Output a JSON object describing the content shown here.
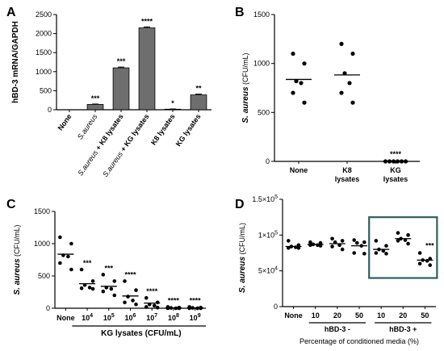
{
  "panels": {
    "A": {
      "label": "A"
    },
    "B": {
      "label": "B"
    },
    "C": {
      "label": "C"
    },
    "D": {
      "label": "D"
    }
  },
  "chart_data": [
    {
      "id": "A",
      "type": "bar",
      "ylabel": "hBD-3 mRNA/GAPDH",
      "ylim": [
        0,
        2500
      ],
      "yticks": [
        0,
        500,
        1000,
        1500,
        2000,
        2500
      ],
      "categories": [
        {
          "parts": [
            "None"
          ]
        },
        {
          "parts": [
            "S.aureus"
          ],
          "italic": [
            true
          ]
        },
        {
          "parts": [
            "S.aureus",
            " + K8 lysates"
          ],
          "italic": [
            true,
            false
          ]
        },
        {
          "parts": [
            "S.aureus",
            " + KG lysates"
          ],
          "italic": [
            true,
            false
          ]
        },
        {
          "parts": [
            "K8 lysates"
          ]
        },
        {
          "parts": [
            "KG lysates"
          ]
        }
      ],
      "values": [
        0,
        140,
        1100,
        2150,
        15,
        390
      ],
      "errors": [
        0,
        10,
        20,
        25,
        5,
        20
      ],
      "significance": [
        "",
        "***",
        "***",
        "****",
        "*",
        "**"
      ],
      "bar_color": "#6e6e6e"
    },
    {
      "id": "B",
      "type": "scatter",
      "ylabel": "S. aureus (CFU/mL)",
      "ylim": [
        0,
        1500
      ],
      "yticks": [
        0,
        500,
        1000,
        1500
      ],
      "categories": [
        {
          "lines": [
            "None"
          ]
        },
        {
          "lines": [
            "K8",
            "lysates"
          ]
        },
        {
          "lines": [
            "KG",
            "lysates"
          ]
        }
      ],
      "points": [
        [
          1100,
          1000,
          820,
          800,
          700,
          600
        ],
        [
          1200,
          1100,
          900,
          800,
          700,
          600
        ],
        [
          0,
          0,
          0,
          0,
          0,
          0
        ]
      ],
      "means": [
        837,
        883,
        0
      ],
      "significance": [
        "",
        "",
        "****"
      ]
    },
    {
      "id": "C",
      "type": "scatter",
      "ylabel": "S. aureus (CFU/mL)",
      "xlabel": "KG lysates (CFU/mL)",
      "ylim": [
        0,
        1500
      ],
      "yticks": [
        0,
        500,
        1000,
        1500
      ],
      "categories": [
        {
          "base": "None",
          "exp": ""
        },
        {
          "base": "10",
          "exp": "4"
        },
        {
          "base": "10",
          "exp": "5"
        },
        {
          "base": "10",
          "exp": "6"
        },
        {
          "base": "10",
          "exp": "7"
        },
        {
          "base": "10",
          "exp": "8"
        },
        {
          "base": "10",
          "exp": "9"
        }
      ],
      "points": [
        [
          1100,
          1000,
          820,
          800,
          700,
          600
        ],
        [
          600,
          420,
          360,
          320,
          310,
          300
        ],
        [
          520,
          420,
          320,
          300,
          260,
          200
        ],
        [
          420,
          280,
          180,
          120,
          90,
          60
        ],
        [
          160,
          90,
          60,
          40,
          20,
          10
        ],
        [
          20,
          10,
          5,
          0,
          0,
          0
        ],
        [
          20,
          10,
          5,
          0,
          0,
          0
        ]
      ],
      "means": [
        837,
        380,
        340,
        190,
        80,
        6,
        6
      ],
      "significance": [
        "",
        "***",
        "***",
        "****",
        "****",
        "****",
        "****"
      ]
    },
    {
      "id": "D",
      "type": "scatter",
      "ylabel": "S. aureus (CFU/mL)",
      "xlabel": "Percentage of conditioned media (%)",
      "ylim": [
        0,
        150000
      ],
      "yticks": [
        {
          "v": 0,
          "base": "0",
          "exp": ""
        },
        {
          "v": 50000,
          "base": "5×10",
          "exp": "4"
        },
        {
          "v": 100000,
          "base": "1×10",
          "exp": "5"
        },
        {
          "v": 150000,
          "base": "1.5×10",
          "exp": "5"
        }
      ],
      "categories": [
        "None",
        "10",
        "20",
        "50",
        "10",
        "20",
        "50"
      ],
      "groups": [
        {
          "label": "hBD-3 -",
          "from": 1,
          "to": 3
        },
        {
          "label": "hBD-3 +",
          "from": 4,
          "to": 6
        }
      ],
      "highlight": {
        "from": 4,
        "to": 6,
        "color": "#2f5f5f"
      },
      "points": [
        [
          92000,
          86000,
          84000,
          83000,
          82000,
          82000
        ],
        [
          90000,
          89000,
          87000,
          86000,
          86000,
          85000
        ],
        [
          95000,
          92000,
          90000,
          86000,
          84000,
          80000
        ],
        [
          93000,
          90000,
          89000,
          85000,
          75000,
          74000
        ],
        [
          92000,
          85000,
          80000,
          78000,
          75000,
          74000
        ],
        [
          103000,
          100000,
          95000,
          93000,
          92000,
          88000
        ],
        [
          75000,
          67000,
          65000,
          64000,
          60000,
          58000
        ]
      ],
      "means": [
        84000,
        87000,
        88000,
        85000,
        80000,
        95000,
        65000
      ],
      "significance": [
        "",
        "",
        "",
        "",
        "",
        "",
        "***"
      ]
    }
  ]
}
